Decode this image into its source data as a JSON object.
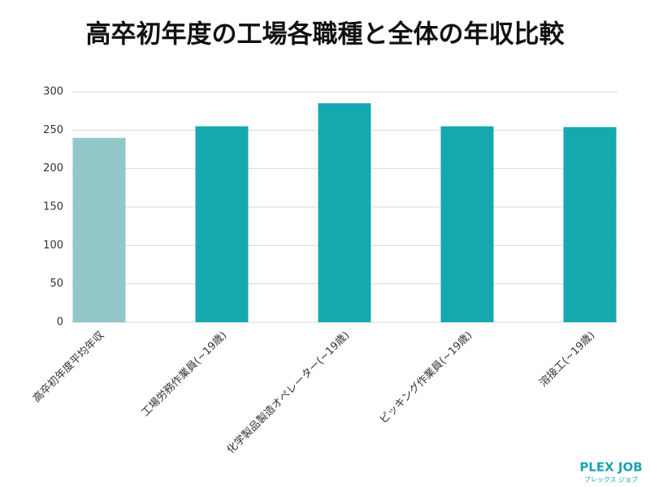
{
  "chart_data": {
    "type": "bar",
    "title": "高卒初年度の工場各職種と全体の年収比較",
    "categories": [
      "高卒初年度平均年収",
      "工場労務作業員(~19歳)",
      "化学製品製造オペレーター(~19歳)",
      "ピッキング作業員(~19歳)",
      "溶接工(~19歳)"
    ],
    "values": [
      240,
      255,
      285,
      255,
      254
    ],
    "colors": [
      "#93c6c9",
      "#14a9ae",
      "#14a9ae",
      "#14a9ae",
      "#14a9ae"
    ],
    "ylim": [
      0,
      300
    ],
    "yticks": [
      0,
      50,
      100,
      150,
      200,
      250,
      300
    ],
    "grid": true
  },
  "logo": {
    "name": "PLEX JOB",
    "kana": "プレックス ジョブ"
  }
}
